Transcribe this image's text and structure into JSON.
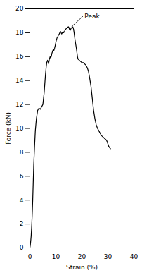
{
  "chart_data": {
    "type": "line",
    "xlabel": "Strain (%)",
    "ylabel": "Force (kN)",
    "xlim": [
      0,
      40
    ],
    "ylim": [
      0,
      20
    ],
    "xticks": [
      0,
      10,
      20,
      30,
      40
    ],
    "yticks": [
      0,
      2,
      4,
      6,
      8,
      10,
      12,
      14,
      16,
      18,
      20
    ],
    "grid": false,
    "color": "#000000",
    "annotations": [
      {
        "text": "Peak",
        "xy": [
          16.0,
          18.5
        ],
        "xytext": [
          20.5,
          19.4
        ]
      }
    ],
    "x": [
      0.0,
      0.15,
      0.3,
      0.5,
      0.7,
      0.9,
      1.1,
      1.3,
      1.5,
      1.8,
      2.1,
      2.5,
      3.0,
      3.5,
      4.0,
      4.5,
      5.0,
      5.5,
      6.0,
      6.3,
      6.5,
      6.8,
      7.0,
      7.2,
      7.5,
      7.8,
      8.0,
      8.2,
      8.5,
      8.8,
      9.0,
      9.2,
      9.5,
      9.8,
      10.0,
      10.2,
      10.5,
      10.8,
      11.0,
      11.3,
      11.5,
      11.8,
      12.0,
      12.2,
      12.5,
      12.8,
      13.0,
      13.3,
      13.5,
      13.8,
      14.0,
      14.3,
      14.5,
      14.8,
      15.0,
      15.2,
      15.5,
      15.8,
      16.0,
      16.3,
      16.5,
      16.8,
      17.0,
      17.3,
      17.5,
      17.8,
      18.0,
      18.3,
      18.5,
      19.0,
      19.5,
      20.0,
      20.5,
      21.0,
      21.5,
      22.0,
      22.5,
      23.0,
      23.5,
      24.0,
      24.5,
      25.0,
      25.5,
      26.0,
      26.5,
      27.0,
      27.5,
      28.0,
      28.5,
      29.0,
      29.5,
      30.0,
      30.3,
      30.6,
      31.0
    ],
    "values": [
      0.0,
      0.2,
      0.5,
      1.0,
      1.8,
      2.8,
      4.0,
      5.5,
      7.0,
      8.5,
      9.8,
      10.8,
      11.5,
      11.7,
      11.6,
      11.8,
      12.0,
      13.0,
      14.5,
      15.2,
      15.5,
      15.7,
      15.6,
      15.4,
      15.8,
      16.0,
      15.9,
      16.0,
      16.3,
      16.5,
      16.6,
      16.5,
      16.7,
      17.0,
      17.2,
      17.4,
      17.6,
      17.7,
      17.8,
      17.9,
      18.0,
      18.1,
      18.0,
      17.9,
      18.0,
      18.1,
      18.0,
      18.1,
      18.2,
      18.3,
      18.35,
      18.4,
      18.45,
      18.5,
      18.45,
      18.3,
      18.2,
      18.35,
      18.4,
      18.4,
      18.5,
      18.3,
      18.0,
      17.5,
      17.2,
      16.8,
      16.5,
      16.0,
      15.8,
      15.7,
      15.6,
      15.5,
      15.5,
      15.4,
      15.3,
      15.1,
      14.8,
      14.2,
      13.5,
      12.5,
      11.5,
      10.8,
      10.3,
      10.0,
      9.8,
      9.6,
      9.4,
      9.3,
      9.2,
      9.1,
      9.0,
      8.7,
      8.5,
      8.4,
      8.3
    ]
  }
}
